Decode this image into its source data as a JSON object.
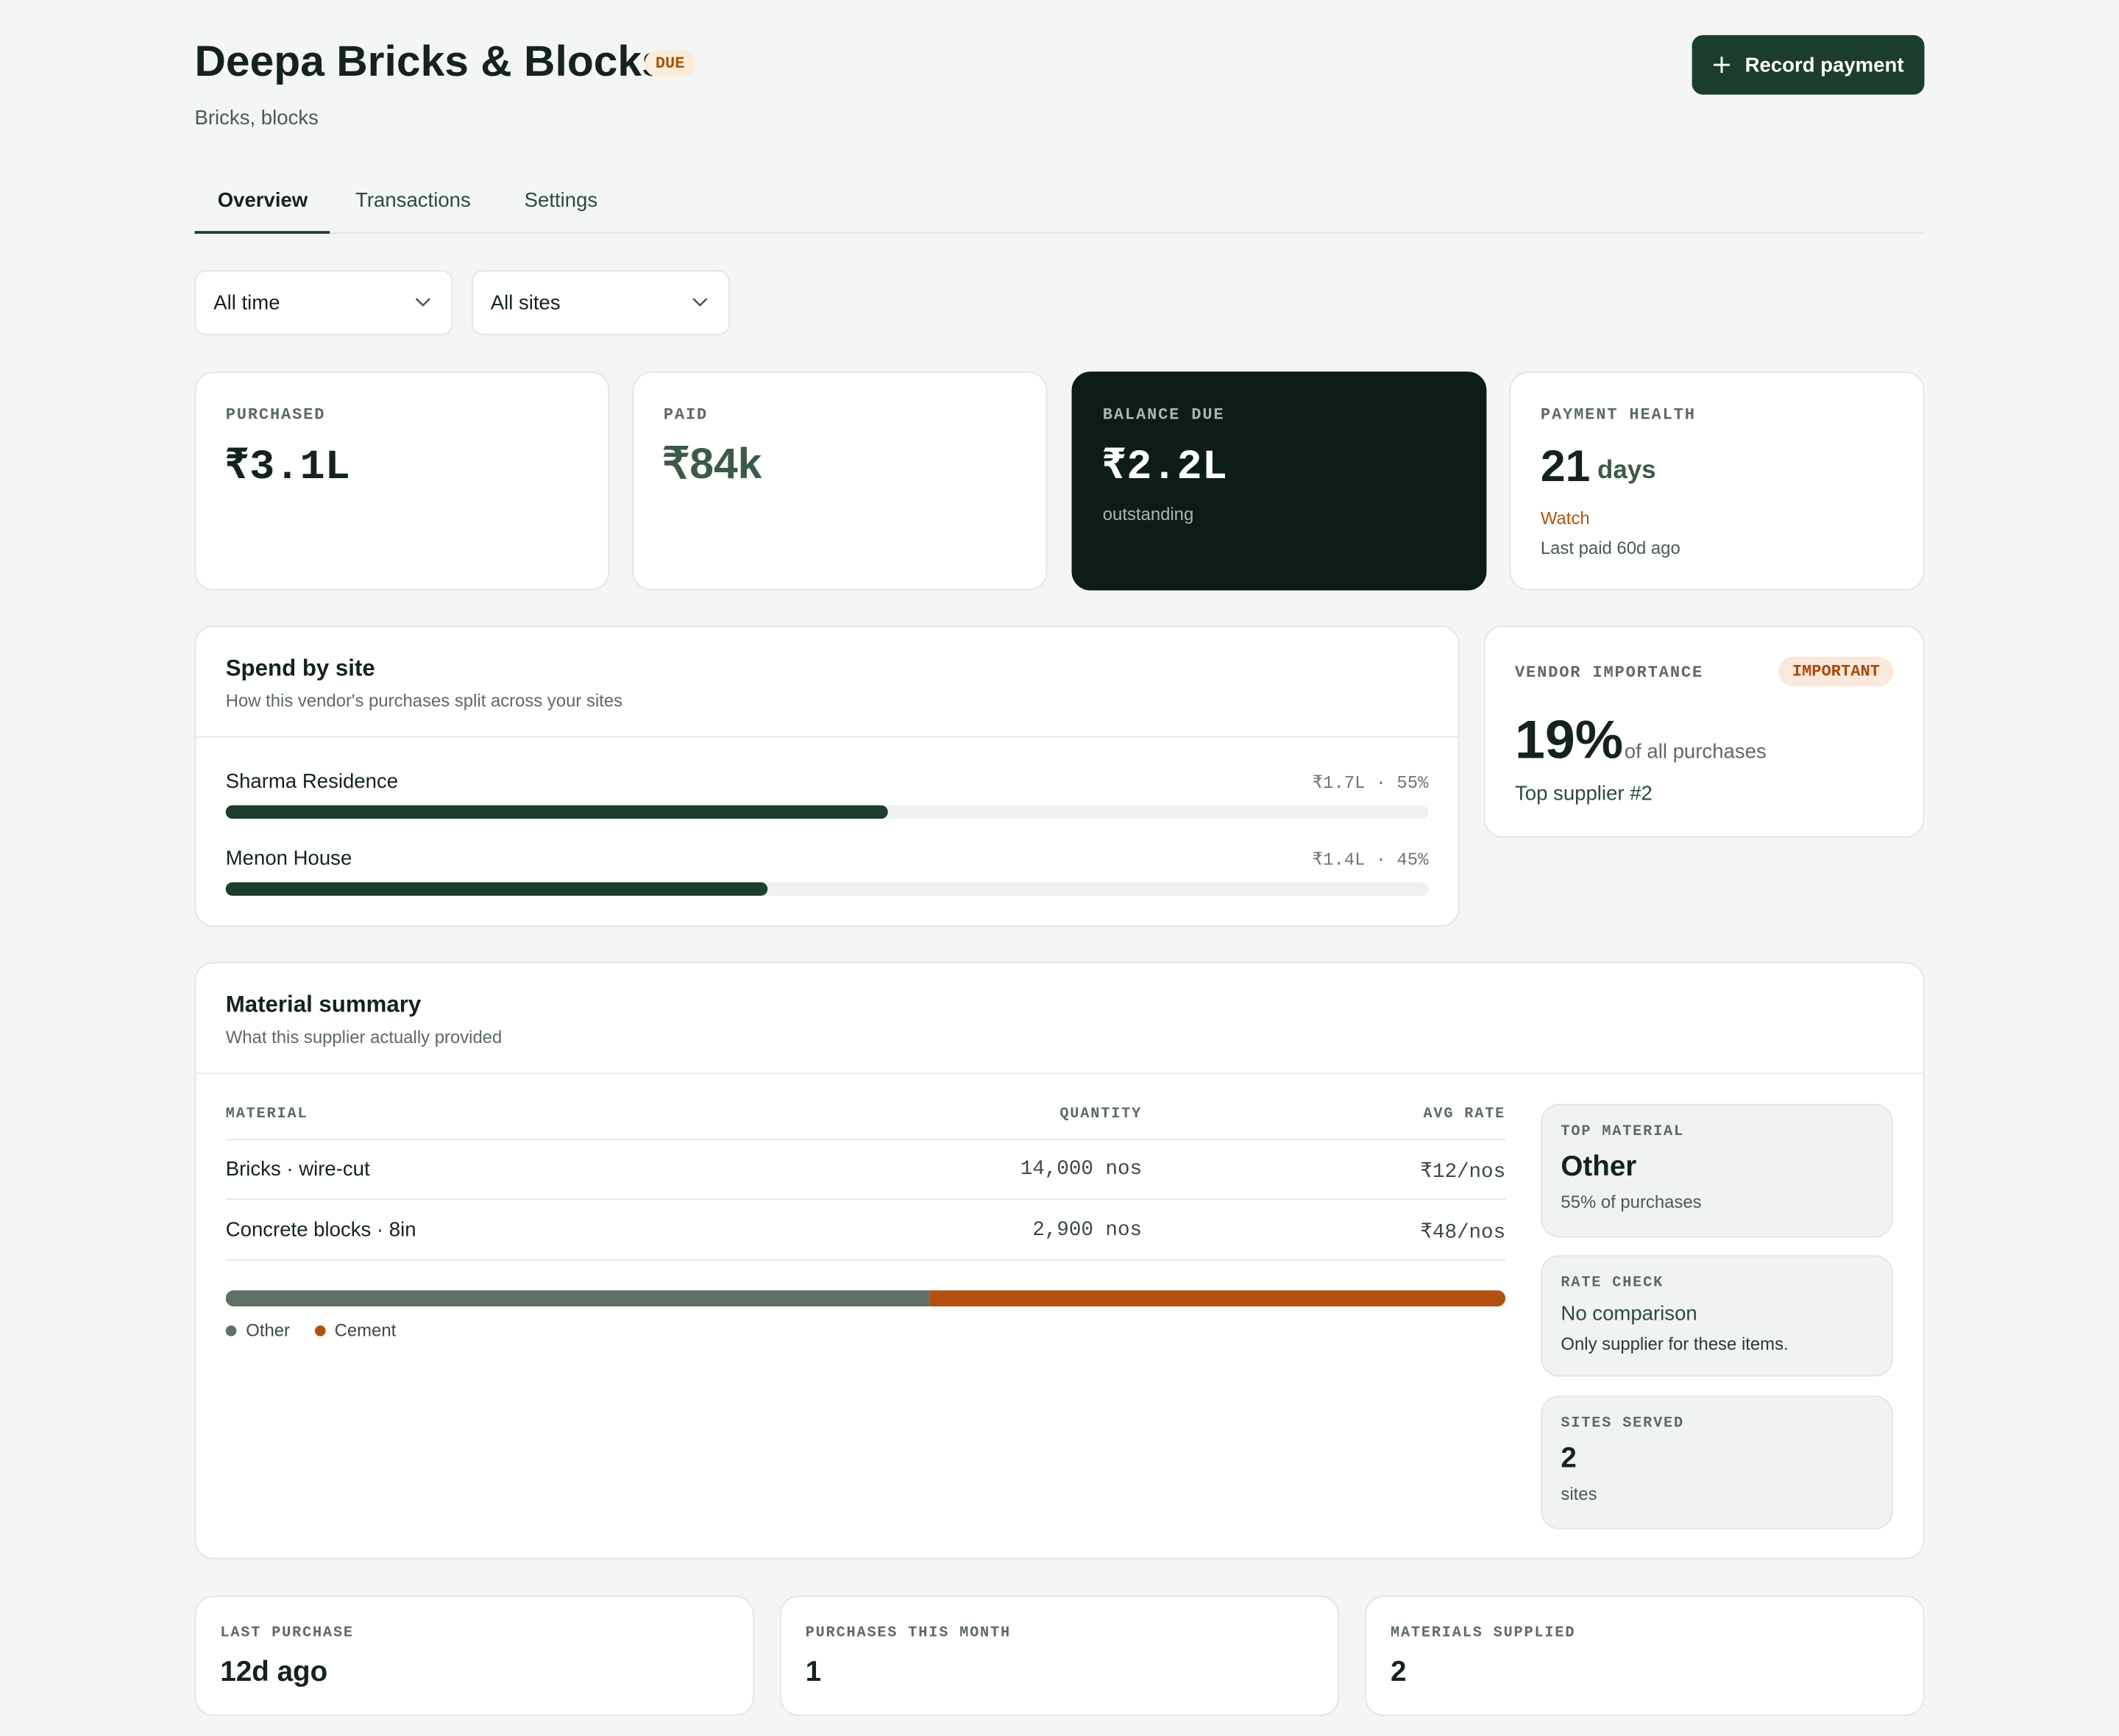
{
  "header": {
    "title": "Deepa Bricks & Blocks",
    "status": "DUE",
    "subtitle": "Bricks, blocks",
    "action": "Record payment"
  },
  "tabs": [
    "Overview",
    "Transactions",
    "Settings"
  ],
  "filters": [
    "All time",
    "All sites"
  ],
  "stats": [
    {
      "label": "PURCHASED",
      "value": "₹3.1L"
    },
    {
      "label": "PAID",
      "value": "₹84k"
    },
    {
      "label": "BALANCE DUE",
      "value": "₹2.2L",
      "note": "outstanding"
    },
    {
      "label": "PAYMENT HEALTH",
      "value": "21",
      "unit": "days",
      "status": "Watch",
      "note": "Last paid 60d ago"
    }
  ],
  "spend": {
    "title": "Spend by site",
    "subtitle": "How this vendor's purchases split across your sites",
    "sites": [
      {
        "name": "Sharma Residence",
        "meta": "₹1.7L · 55%",
        "share": 55
      },
      {
        "name": "Menon House",
        "meta": "₹1.4L · 45%",
        "share": 45
      }
    ]
  },
  "importance": {
    "label": "VENDOR IMPORTANCE",
    "badge": "IMPORTANT",
    "value": "19%",
    "suffix": "of all purchases",
    "rank": "Top supplier #2"
  },
  "materials": {
    "title": "Material summary",
    "subtitle": "What this supplier actually provided",
    "columns": [
      "MATERIAL",
      "QUANTITY",
      "AVG RATE"
    ],
    "rows": [
      [
        "Bricks · wire-cut",
        "14,000 nos",
        "₹12/nos"
      ],
      [
        "Concrete blocks · 8in",
        "2,900 nos",
        "₹48/nos"
      ]
    ],
    "split": [
      {
        "name": "Other",
        "color": "#5f7165",
        "share": 55
      },
      {
        "name": "Cement",
        "color": "#b3500f",
        "share": 45
      }
    ],
    "cards": [
      {
        "label": "TOP MATERIAL",
        "value": "Other",
        "note": "55% of purchases"
      },
      {
        "label": "RATE CHECK",
        "value": "No comparison",
        "note": "Only supplier for these items."
      },
      {
        "label": "SITES SERVED",
        "value": "2",
        "note": "sites"
      }
    ]
  },
  "footer_stats": [
    {
      "label": "LAST PURCHASE",
      "value": "12d ago"
    },
    {
      "label": "PURCHASES THIS MONTH",
      "value": "1"
    },
    {
      "label": "MATERIALS SUPPLIED",
      "value": "2"
    }
  ]
}
